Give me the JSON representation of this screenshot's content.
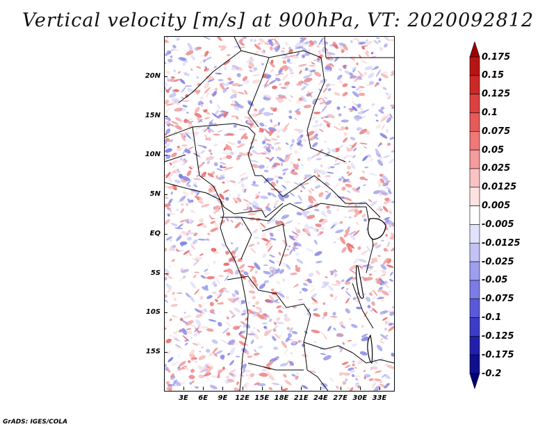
{
  "title": "Vertical velocity [m/s] at 900hPa, VT: 2020092812",
  "credit": "GrADS: IGES/COLA",
  "map": {
    "lat_labels": [
      "20N",
      "15N",
      "10N",
      "5N",
      "EQ",
      "5S",
      "10S",
      "15S"
    ],
    "lon_labels": [
      "3E",
      "6E",
      "9E",
      "12E",
      "15E",
      "18E",
      "21E",
      "24E",
      "27E",
      "30E",
      "33E"
    ],
    "field_colors": {
      "positive": "#e06060",
      "negative": "#6c6ce0",
      "neutral": "#ffffff"
    }
  },
  "colorbar": {
    "labels": [
      "0.175",
      "0.15",
      "0.125",
      "0.1",
      "0.075",
      "0.05",
      "0.025",
      "0.0125",
      "0.005",
      "-0.005",
      "-0.0125",
      "-0.025",
      "-0.05",
      "-0.075",
      "-0.1",
      "-0.125",
      "-0.175",
      "-0.2"
    ],
    "colors": [
      "#a00000",
      "#b81414",
      "#cc2828",
      "#dc4040",
      "#e65a5a",
      "#ef7878",
      "#f59c9c",
      "#fac2c2",
      "#fde2e2",
      "#ffffff",
      "#e2e2fb",
      "#c2c2f5",
      "#9e9eef",
      "#7c7ce6",
      "#5a5ad8",
      "#3c3cc6",
      "#2020ac",
      "#10108c",
      "#000078"
    ]
  }
}
